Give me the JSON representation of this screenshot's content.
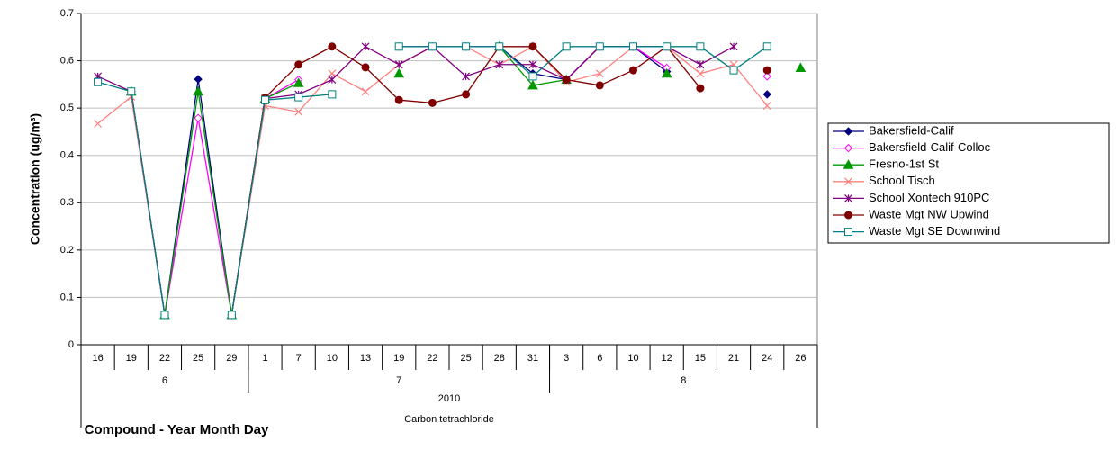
{
  "chart_data": {
    "type": "line",
    "y_label": "Concentration (ug/m³)",
    "x_label": "Compound - Year Month Day",
    "categories": [
      "16",
      "19",
      "22",
      "25",
      "29",
      "1",
      "7",
      "10",
      "13",
      "19",
      "22",
      "25",
      "28",
      "31",
      "3",
      "6",
      "10",
      "12",
      "15",
      "21",
      "24",
      "26"
    ],
    "x_groups": [
      {
        "label": "6",
        "count": 5
      },
      {
        "label": "7",
        "count": 9
      },
      {
        "label": "8",
        "count": 8
      }
    ],
    "x_year": "2010",
    "x_compound": "Carbon tetrachloride",
    "ylim": [
      0,
      0.7
    ],
    "yticks": [
      0,
      0.1,
      0.2,
      0.3,
      0.4,
      0.5,
      0.6,
      0.7
    ],
    "grid": true,
    "legend": "right",
    "series": [
      {
        "name": "Bakersfield-Calif",
        "color": "#000080",
        "marker": "diamond",
        "values": [
          null,
          0.535,
          0.063,
          0.561,
          0.063,
          0.522,
          null,
          null,
          null,
          0.63,
          0.63,
          0.63,
          0.63,
          0.573,
          0.56,
          0.63,
          0.63,
          0.577,
          null,
          null,
          0.529,
          null
        ]
      },
      {
        "name": "Bakersfield-Calif-Colloc",
        "color": "#ff00ff",
        "marker": "open-diamond",
        "values": [
          null,
          0.535,
          0.063,
          0.479,
          0.063,
          0.52,
          0.56,
          null,
          null,
          0.63,
          0.63,
          0.63,
          0.63,
          null,
          0.56,
          0.63,
          0.63,
          0.585,
          null,
          null,
          0.567,
          null
        ]
      },
      {
        "name": "Fresno-1st St",
        "color": "#009900",
        "marker": "triangle",
        "values": [
          null,
          0.535,
          0.063,
          0.535,
          0.063,
          0.52,
          0.553,
          null,
          null,
          0.573,
          null,
          null,
          0.63,
          0.548,
          0.56,
          null,
          null,
          0.573,
          null,
          null,
          null,
          0.585
        ]
      },
      {
        "name": "School Tisch",
        "color": "#ff8080",
        "marker": "x",
        "values": [
          0.467,
          0.524,
          0.063,
          null,
          0.063,
          0.505,
          0.492,
          0.573,
          0.535,
          0.592,
          0.63,
          0.63,
          0.592,
          0.63,
          0.555,
          0.573,
          0.63,
          0.63,
          0.573,
          0.592,
          0.505,
          null
        ]
      },
      {
        "name": "School Xontech 910PC",
        "color": "#800080",
        "marker": "star",
        "values": [
          0.567,
          0.535,
          0.063,
          null,
          0.063,
          0.52,
          0.529,
          0.56,
          0.63,
          0.592,
          0.63,
          0.567,
          0.592,
          0.592,
          0.56,
          0.63,
          0.63,
          0.63,
          0.592,
          0.63,
          null,
          null
        ]
      },
      {
        "name": "Waste Mgt NW Upwind",
        "color": "#800000",
        "marker": "circle",
        "values": [
          null,
          null,
          null,
          null,
          0.063,
          0.522,
          0.592,
          0.63,
          0.586,
          0.517,
          0.511,
          0.529,
          0.63,
          0.63,
          0.56,
          0.548,
          0.58,
          0.63,
          0.542,
          null,
          0.58,
          null
        ]
      },
      {
        "name": "Waste Mgt SE Downwind",
        "color": "#008080",
        "marker": "square",
        "values": [
          0.555,
          0.535,
          0.063,
          null,
          0.063,
          0.517,
          0.523,
          0.529,
          null,
          0.63,
          0.63,
          0.63,
          0.63,
          0.567,
          0.63,
          0.63,
          0.63,
          0.63,
          0.63,
          0.58,
          0.63,
          null
        ]
      }
    ]
  }
}
